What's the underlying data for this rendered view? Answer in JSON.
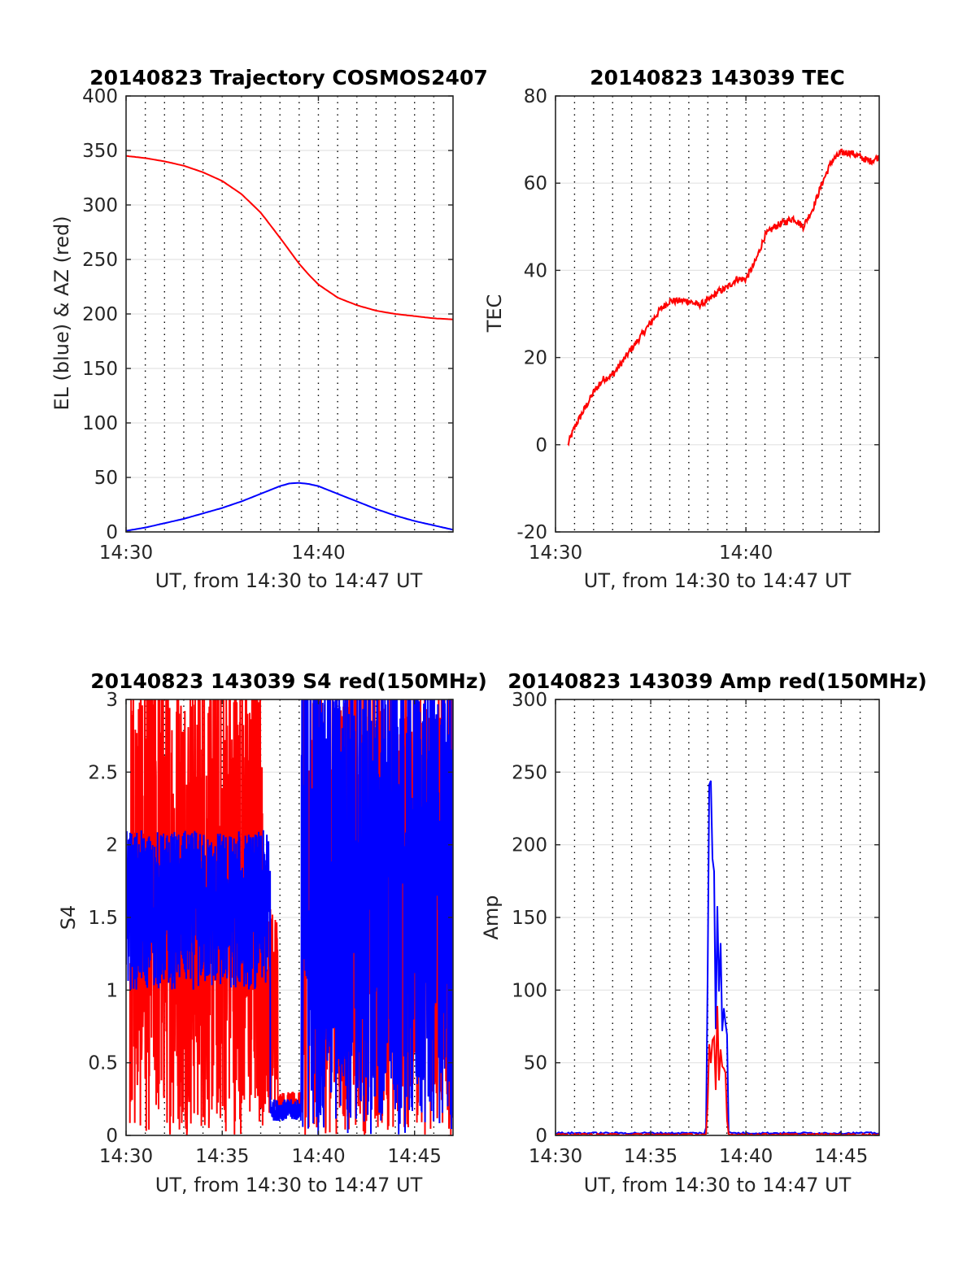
{
  "figure": {
    "background": "#ffffff"
  },
  "chart_data": [
    {
      "type": "line",
      "title": "20140823 Trajectory COSMOS2407",
      "xlabel": "UT, from 14:30 to 14:47 UT",
      "ylabel": "EL (blue) & AZ (red)",
      "xlim": [
        "14:30",
        "14:47"
      ],
      "xticks": [
        "14:30",
        "14:40"
      ],
      "ylim": [
        0,
        400
      ],
      "yticks": [
        "0",
        "50",
        "100",
        "150",
        "200",
        "250",
        "300",
        "350",
        "400"
      ],
      "grid": true,
      "x_minor_grid_minutes": 1,
      "series": [
        {
          "color": "#ff0000",
          "x_minutes_after_1430": [
            0,
            1,
            2,
            3,
            4,
            5,
            6,
            7,
            8,
            8.5,
            9,
            9.5,
            10,
            11,
            12,
            13,
            14,
            15,
            16,
            17
          ],
          "values": [
            345,
            343,
            340,
            336,
            330,
            322,
            310,
            293,
            270,
            258,
            246,
            236,
            227,
            215,
            208,
            203,
            200,
            198,
            196,
            195
          ]
        },
        {
          "color": "#0000ff",
          "x_minutes_after_1430": [
            0,
            1,
            2,
            3,
            4,
            5,
            6,
            7,
            8,
            8.5,
            9,
            9.5,
            10,
            11,
            12,
            13,
            14,
            15,
            16,
            17
          ],
          "values": [
            1,
            4,
            8,
            12,
            17,
            22,
            28,
            35,
            42,
            44.5,
            45,
            44,
            42,
            35,
            28,
            21,
            15,
            10,
            6,
            2
          ]
        }
      ]
    },
    {
      "type": "line",
      "title": "20140823 143039 TEC",
      "xlabel": "UT, from 14:30 to 14:47 UT",
      "ylabel": "TEC",
      "xlim": [
        "14:30",
        "14:47"
      ],
      "xticks": [
        "14:30",
        "14:40"
      ],
      "ylim": [
        -20,
        80
      ],
      "yticks": [
        "-20",
        "0",
        "20",
        "40",
        "60",
        "80"
      ],
      "grid": true,
      "x_minor_grid_minutes": 1,
      "series": [
        {
          "color": "#ff0000",
          "x_minutes_after_1430": [
            0.65,
            1,
            1.5,
            2,
            2.5,
            3,
            3.5,
            4,
            4.5,
            5,
            5.5,
            6,
            6.5,
            7,
            7.5,
            8,
            8.5,
            9,
            9.5,
            10,
            10.5,
            11,
            11.5,
            12,
            12.5,
            13,
            13.5,
            14,
            14.5,
            15,
            15.5,
            16,
            16.5,
            17
          ],
          "values": [
            0,
            4,
            8,
            12,
            15,
            16,
            19,
            22,
            25,
            28,
            31,
            33,
            33,
            33,
            32,
            33,
            35,
            36,
            38,
            38,
            42,
            48,
            50,
            51,
            52,
            50,
            54,
            60,
            65,
            67,
            67,
            66,
            65,
            66
          ]
        }
      ]
    },
    {
      "type": "line",
      "title": "20140823 143039 S4 red(150MHz)",
      "xlabel": "UT, from 14:30 to 14:47 UT",
      "ylabel": "S4",
      "xlim": [
        "14:30",
        "14:47"
      ],
      "xticks": [
        "14:30",
        "14:35",
        "14:40",
        "14:45"
      ],
      "ylim": [
        0,
        3
      ],
      "yticks": [
        "0",
        "0.5",
        "1",
        "1.5",
        "2",
        "2.5",
        "3"
      ],
      "grid": true,
      "x_minor_grid_minutes": 1,
      "series": [
        {
          "color": "#ff0000",
          "x_minutes_after_1430": [
            0.2,
            17
          ],
          "range": [
            0,
            3
          ],
          "dense": true,
          "note_segments": [
            [
              0.2,
              7.1,
              "0-3 saturated"
            ],
            [
              7.1,
              9.2,
              "spike to 1.6 then ~0.2"
            ],
            [
              9.2,
              17,
              "0-3 saturated"
            ]
          ]
        },
        {
          "color": "#0000ff",
          "x_minutes_after_1430": [
            0,
            7.5
          ],
          "range": [
            1.0,
            2.1
          ],
          "dense": true,
          "note_segments": [
            [
              0,
              7.5,
              "1.0-2.1"
            ],
            [
              7.5,
              9.1,
              "0.1-0.25"
            ],
            [
              9.1,
              17,
              "0-3 saturated"
            ]
          ]
        }
      ]
    },
    {
      "type": "line",
      "title": "20140823 143039 Amp red(150MHz)",
      "xlabel": "UT, from 14:30 to 14:47 UT",
      "ylabel": "Amp",
      "xlim": [
        "14:30",
        "14:47"
      ],
      "xticks": [
        "14:30",
        "14:35",
        "14:40",
        "14:45"
      ],
      "ylim": [
        0,
        300
      ],
      "yticks": [
        "0",
        "50",
        "100",
        "150",
        "200",
        "250",
        "300"
      ],
      "grid": true,
      "x_minor_grid_minutes": 1,
      "series": [
        {
          "color": "#0000ff",
          "x_minutes_after_1430": [
            0,
            7.9,
            8.0,
            8.1,
            8.2,
            8.3,
            8.4,
            8.5,
            8.6,
            8.7,
            8.8,
            8.9,
            9.0,
            9.1,
            17
          ],
          "values": [
            1,
            1,
            100,
            230,
            200,
            220,
            80,
            170,
            120,
            150,
            90,
            110,
            60,
            1,
            1
          ]
        },
        {
          "color": "#ff0000",
          "x_minutes_after_1430": [
            0,
            7.9,
            8.0,
            8.1,
            8.2,
            8.3,
            8.4,
            8.5,
            8.6,
            8.7,
            8.8,
            8.9,
            9.0,
            9.1,
            17
          ],
          "values": [
            0,
            0,
            20,
            55,
            40,
            60,
            25,
            70,
            35,
            65,
            30,
            60,
            20,
            0,
            0
          ]
        }
      ]
    }
  ]
}
